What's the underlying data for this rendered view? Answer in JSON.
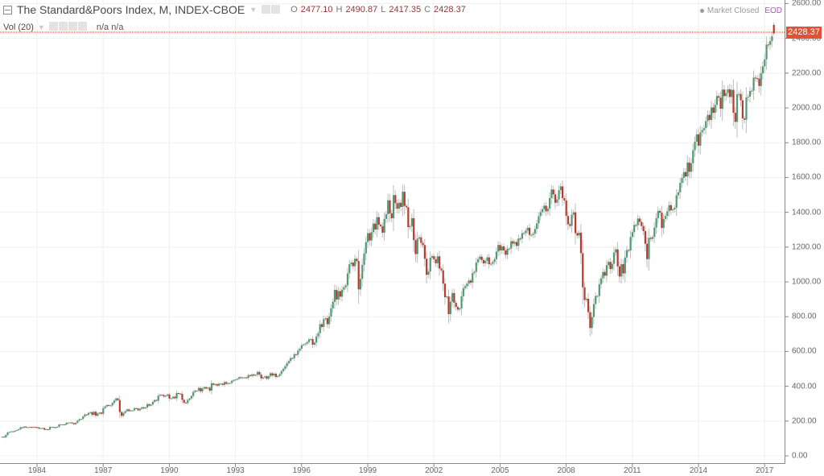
{
  "header": {
    "title": "The Standard&Poors Index, M, INDEX-CBOE",
    "ohlc": {
      "o_label": "O",
      "o": "2477.10",
      "h_label": "H",
      "h": "2490.87",
      "l_label": "L",
      "l": "2417.35",
      "c_label": "C",
      "c": "2428.37"
    },
    "volume_label": "Vol (20)",
    "volume_values": "n/a n/a",
    "market_status": "Market Closed",
    "data_mode": "EOD"
  },
  "price_tag": "2428.37",
  "colors": {
    "up": "#4f9a72",
    "down": "#b83a2e",
    "wick": "#bdbdbd",
    "grid": "#efefef",
    "price_line": "#e05138"
  },
  "chart_data": {
    "type": "candlestick",
    "title": "The Standard&Poors Index, M, INDEX-CBOE",
    "interval": "monthly",
    "xlabel": "",
    "ylabel": "",
    "ylim": [
      0,
      2600
    ],
    "yticks": [
      "0.00",
      "200.00",
      "400.00",
      "600.00",
      "800.00",
      "1000.00",
      "1200.00",
      "1400.00",
      "1600.00",
      "1800.00",
      "2000.00",
      "2200.00",
      "2400.00",
      "2600.00"
    ],
    "xticks": [
      "1984",
      "1987",
      "1990",
      "1993",
      "1996",
      "1999",
      "2002",
      "2005",
      "2008",
      "2011",
      "2014",
      "2017"
    ],
    "grid": true,
    "last": {
      "open": 2477.1,
      "high": 2490.87,
      "low": 2417.35,
      "close": 2428.37
    },
    "start": "1982-06",
    "monthly_close": [
      110,
      107,
      120,
      134,
      138,
      141,
      140,
      145,
      148,
      153,
      164,
      162,
      168,
      163,
      164,
      166,
      163,
      166,
      165,
      163,
      157,
      159,
      160,
      151,
      153,
      151,
      166,
      166,
      164,
      163,
      167,
      180,
      181,
      181,
      180,
      190,
      191,
      192,
      188,
      182,
      190,
      202,
      211,
      212,
      226,
      238,
      236,
      247,
      251,
      236,
      253,
      231,
      243,
      249,
      242,
      274,
      284,
      292,
      288,
      290,
      304,
      318,
      330,
      321,
      252,
      230,
      247,
      257,
      267,
      258,
      261,
      262,
      274,
      272,
      262,
      271,
      279,
      273,
      278,
      297,
      289,
      295,
      310,
      321,
      318,
      346,
      351,
      349,
      341,
      346,
      353,
      329,
      331,
      340,
      331,
      361,
      358,
      356,
      322,
      306,
      304,
      322,
      330,
      344,
      367,
      375,
      375,
      390,
      371,
      387,
      395,
      387,
      392,
      375,
      417,
      409,
      412,
      404,
      415,
      415,
      408,
      424,
      414,
      418,
      419,
      431,
      436,
      439,
      443,
      452,
      448,
      450,
      451,
      448,
      464,
      459,
      468,
      462,
      466,
      482,
      467,
      445,
      451,
      457,
      444,
      458,
      475,
      462,
      472,
      454,
      459,
      470,
      487,
      500,
      515,
      533,
      545,
      562,
      561,
      584,
      582,
      605,
      616,
      636,
      640,
      645,
      654,
      669,
      671,
      639,
      651,
      687,
      705,
      757,
      741,
      786,
      791,
      757,
      801,
      848,
      885,
      954,
      899,
      947,
      915,
      955,
      970,
      980,
      1049,
      1101,
      1111,
      1090,
      1133,
      1120,
      957,
      1017,
      1098,
      1164,
      1229,
      1280,
      1238,
      1286,
      1335,
      1301,
      1372,
      1329,
      1320,
      1283,
      1362,
      1389,
      1469,
      1394,
      1366,
      1499,
      1452,
      1421,
      1455,
      1431,
      1518,
      1437,
      1429,
      1315,
      1320,
      1366,
      1240,
      1160,
      1249,
      1256,
      1224,
      1211,
      1133,
      1041,
      1060,
      1139,
      1148,
      1130,
      1107,
      1147,
      1077,
      1067,
      990,
      912,
      916,
      815,
      886,
      936,
      880,
      856,
      841,
      848,
      917,
      964,
      975,
      990,
      1008,
      996,
      1051,
      1058,
      1112,
      1131,
      1145,
      1126,
      1107,
      1121,
      1141,
      1102,
      1104,
      1115,
      1130,
      1174,
      1212,
      1181,
      1204,
      1181,
      1156,
      1191,
      1191,
      1234,
      1220,
      1229,
      1207,
      1249,
      1248,
      1280,
      1281,
      1295,
      1311,
      1270,
      1270,
      1277,
      1304,
      1336,
      1378,
      1401,
      1418,
      1438,
      1406,
      1421,
      1482,
      1531,
      1503,
      1455,
      1474,
      1527,
      1549,
      1481,
      1468,
      1379,
      1331,
      1322,
      1386,
      1400,
      1280,
      1267,
      1283,
      1165,
      969,
      896,
      903,
      826,
      735,
      798,
      873,
      919,
      919,
      987,
      1021,
      1057,
      1036,
      1096,
      1115,
      1074,
      1104,
      1169,
      1187,
      1089,
      1031,
      1102,
      1049,
      1141,
      1183,
      1181,
      1258,
      1286,
      1327,
      1326,
      1364,
      1345,
      1321,
      1292,
      1219,
      1131,
      1253,
      1247,
      1258,
      1312,
      1366,
      1408,
      1398,
      1310,
      1362,
      1379,
      1406,
      1441,
      1412,
      1416,
      1426,
      1498,
      1515,
      1569,
      1598,
      1631,
      1606,
      1686,
      1633,
      1682,
      1757,
      1806,
      1848,
      1783,
      1859,
      1872,
      1884,
      1924,
      1960,
      1931,
      2003,
      1972,
      2018,
      2068,
      2059,
      1995,
      2105,
      2068,
      2086,
      2107,
      2063,
      2104,
      1972,
      1920,
      2079,
      2080,
      2044,
      1940,
      1932,
      2060,
      2065,
      2097,
      2099,
      2174,
      2171,
      2168,
      2126,
      2199,
      2239,
      2279,
      2364,
      2363,
      2384,
      2412,
      2428
    ]
  }
}
